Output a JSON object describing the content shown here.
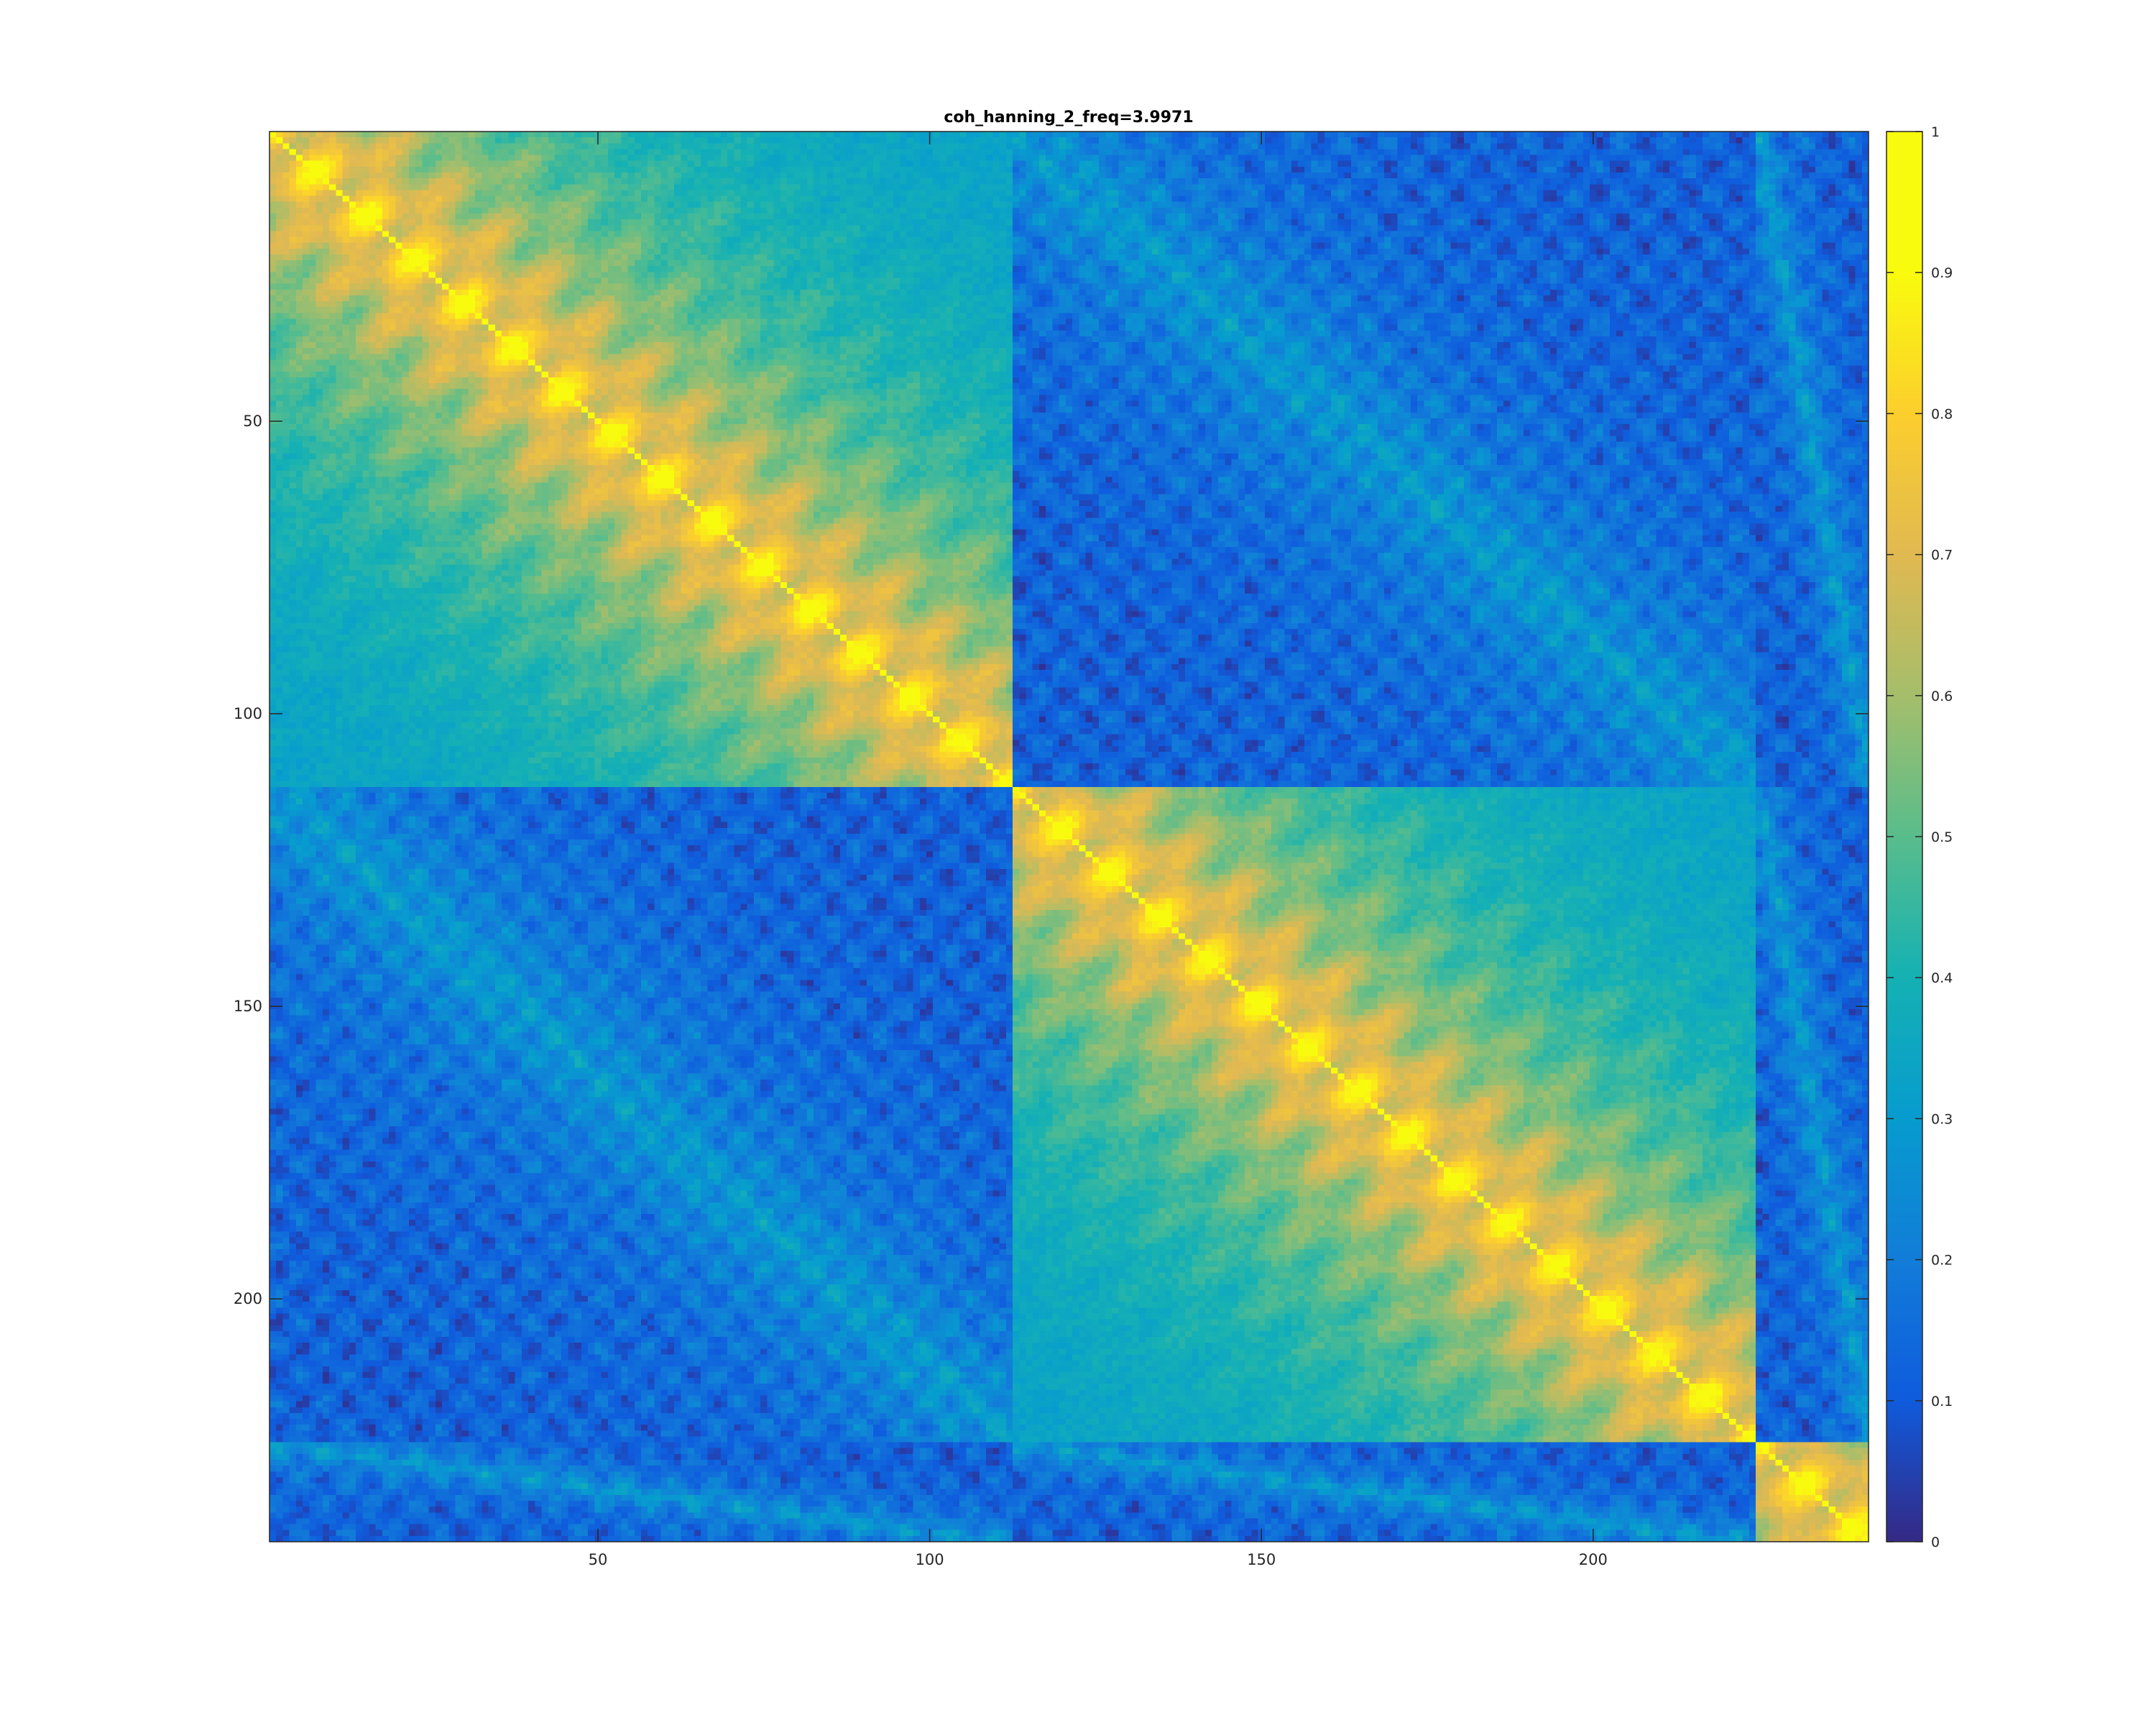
{
  "chart_data": {
    "type": "heatmap",
    "title": "coh_hanning_2_freq=3.9971",
    "xlabel": "",
    "ylabel": "",
    "matrix_size": 241,
    "xlim": [
      0.5,
      241.5
    ],
    "ylim": [
      0.5,
      241.5
    ],
    "y_reversed": true,
    "x_ticks": [
      50,
      100,
      150,
      200
    ],
    "x_tick_labels": [
      "50",
      "100",
      "150",
      "200"
    ],
    "y_ticks": [
      50,
      100,
      150,
      200
    ],
    "y_tick_labels": [
      "50",
      "100",
      "150",
      "200"
    ],
    "colormap": "parula",
    "clim": [
      0,
      1
    ],
    "colorbar": {
      "location": "right",
      "ticks": [
        0,
        0.1,
        0.2,
        0.3,
        0.4,
        0.5,
        0.6,
        0.7,
        0.8,
        0.9,
        1
      ],
      "tick_labels": [
        "0",
        "0.1",
        "0.2",
        "0.3",
        "0.4",
        "0.5",
        "0.6",
        "0.7",
        "0.8",
        "0.9",
        "1"
      ]
    },
    "blocks": [
      {
        "rows": [
          1,
          112
        ],
        "cols": [
          1,
          112
        ],
        "pattern": "high-coherence diagonal with checkerboard banding"
      },
      {
        "rows": [
          113,
          224
        ],
        "cols": [
          113,
          224
        ],
        "pattern": "high-coherence diagonal with checkerboard banding"
      },
      {
        "rows": [
          225,
          241
        ],
        "cols": [
          225,
          241
        ],
        "pattern": "high-coherence diagonal"
      }
    ],
    "diagonal_value": 1,
    "within_block_range": [
      0.3,
      0.95
    ],
    "between_block_range": [
      0.05,
      0.45
    ],
    "grid": false
  }
}
